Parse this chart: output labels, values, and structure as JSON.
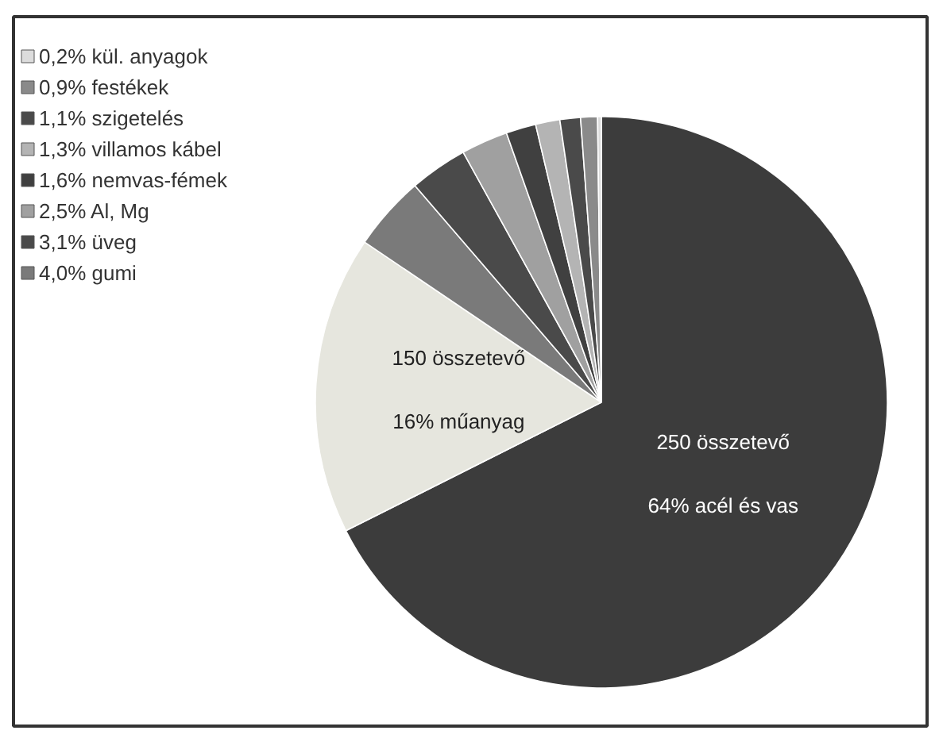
{
  "chart_data": {
    "type": "pie",
    "categories": [
      "64% acél és vas",
      "16% műanyag",
      "4,0% gumi",
      "3,1% üveg",
      "2,5% Al, Mg",
      "1,6% nemvas-fémek",
      "1,3% villamos kábel",
      "1,1% szigetelés",
      "0,9% festékek",
      "0,2% kül. anyagok"
    ],
    "values": [
      64,
      16,
      4.0,
      3.1,
      2.5,
      1.6,
      1.3,
      1.1,
      0.9,
      0.2
    ],
    "colors": [
      "#3c3c3c",
      "#e6e6de",
      "#7a7a7a",
      "#4a4a4a",
      "#a0a0a0",
      "#404040",
      "#b4b4b4",
      "#4a4a4a",
      "#8a8a8a",
      "#dcdcdc"
    ],
    "annotations": [
      "250 összetevő",
      "150 összetevő"
    ],
    "legend": "top left"
  }
}
